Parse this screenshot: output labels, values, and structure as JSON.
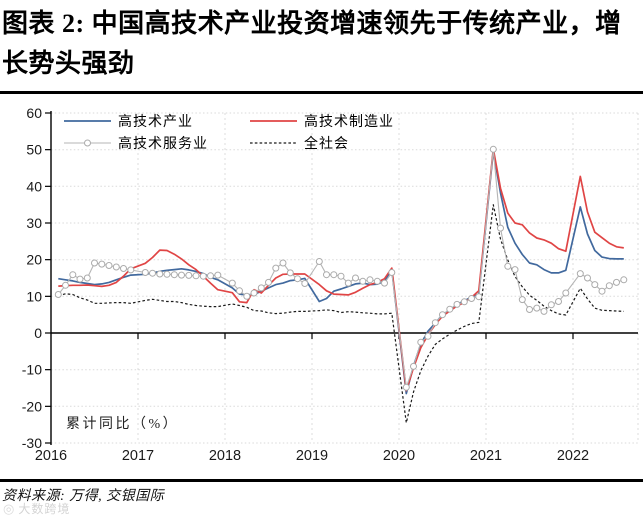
{
  "header": {
    "title": "图表 2: 中国高技术产业投资增速领先于传统产业，增长势头强劲"
  },
  "footer": {
    "source": "资料来源: 万得, 交银国际",
    "watermark": "大数跨境",
    "watermark_icon": "logo-icon"
  },
  "chart_data": {
    "type": "line",
    "unit_label": "累计同比（%）",
    "legend_position": "top-left, 2 columns",
    "grid": "dotted horizontal every 10, dashed vertical at year starts",
    "ylim": [
      -30,
      60
    ],
    "y_ticks": [
      60,
      50,
      40,
      30,
      20,
      10,
      0,
      -10,
      -20,
      -30
    ],
    "x_tick_labels": [
      "2016",
      "2017",
      "2018",
      "2019",
      "2020",
      "2021",
      "2022"
    ],
    "x": [
      "2016-02",
      "2016-03",
      "2016-04",
      "2016-05",
      "2016-06",
      "2016-07",
      "2016-08",
      "2016-09",
      "2016-10",
      "2016-11",
      "2016-12",
      "2017-02",
      "2017-03",
      "2017-04",
      "2017-05",
      "2017-06",
      "2017-07",
      "2017-08",
      "2017-09",
      "2017-10",
      "2017-11",
      "2017-12",
      "2018-02",
      "2018-03",
      "2018-04",
      "2018-05",
      "2018-06",
      "2018-07",
      "2018-08",
      "2018-09",
      "2018-10",
      "2018-11",
      "2018-12",
      "2019-02",
      "2019-03",
      "2019-04",
      "2019-05",
      "2019-06",
      "2019-07",
      "2019-08",
      "2019-09",
      "2019-10",
      "2019-11",
      "2019-12",
      "2020-02",
      "2020-03",
      "2020-04",
      "2020-05",
      "2020-06",
      "2020-07",
      "2020-08",
      "2020-09",
      "2020-10",
      "2020-11",
      "2020-12",
      "2021-02",
      "2021-03",
      "2021-04",
      "2021-05",
      "2021-06",
      "2021-07",
      "2021-08",
      "2021-09",
      "2021-10",
      "2021-11",
      "2021-12",
      "2022-02",
      "2022-03",
      "2022-04",
      "2022-05",
      "2022-06",
      "2022-07",
      "2022-08"
    ],
    "series": [
      {
        "name": "高技术产业",
        "color": "#41699e",
        "style": "solid",
        "marker": "none",
        "width": 1.7,
        "values": [
          14.8,
          14.5,
          14.2,
          13.8,
          13.5,
          13.2,
          13.4,
          13.8,
          14.5,
          15.2,
          15.8,
          16.0,
          16.4,
          16.8,
          17.1,
          17.3,
          17.5,
          17.2,
          16.8,
          16.2,
          15.2,
          14.5,
          12.3,
          10.6,
          10.4,
          10.5,
          11.4,
          12.3,
          13.2,
          13.6,
          14.3,
          14.5,
          14.9,
          8.6,
          9.4,
          11.4,
          12.0,
          12.7,
          13.4,
          13.6,
          13.2,
          13.3,
          14.2,
          17.3,
          -16.5,
          -9.0,
          -3.0,
          0.5,
          2.7,
          5.0,
          6.3,
          7.8,
          8.8,
          9.8,
          10.6,
          49.6,
          38.2,
          28.8,
          24.5,
          21.4,
          19.1,
          18.6,
          17.3,
          16.4,
          16.4,
          17.1,
          34.4,
          27.0,
          22.5,
          20.7,
          20.3,
          20.2,
          20.2
        ]
      },
      {
        "name": "高技术制造业",
        "color": "#e04545",
        "style": "solid",
        "marker": "none",
        "width": 1.7,
        "values": [
          12.8,
          12.9,
          13.0,
          13.0,
          13.1,
          12.9,
          12.7,
          13.0,
          13.8,
          15.5,
          17.5,
          19.0,
          20.6,
          22.6,
          22.5,
          21.5,
          20.2,
          18.6,
          17.3,
          15.5,
          13.6,
          11.8,
          11.0,
          8.5,
          8.3,
          11.8,
          10.9,
          13.0,
          15.0,
          16.0,
          16.1,
          16.1,
          16.1,
          13.2,
          11.5,
          10.6,
          10.5,
          10.4,
          11.1,
          12.2,
          13.2,
          13.8,
          14.8,
          17.7,
          -15.7,
          -9.5,
          -4.0,
          -0.5,
          2.3,
          4.6,
          6.0,
          7.4,
          8.3,
          9.7,
          11.5,
          50.2,
          39.5,
          32.7,
          30.0,
          29.5,
          27.3,
          25.9,
          25.4,
          24.5,
          23.0,
          22.3,
          42.7,
          33.0,
          27.5,
          26.0,
          24.5,
          23.5,
          23.2
        ]
      },
      {
        "name": "高技术服务业",
        "color": "#b5b5b5",
        "style": "solid",
        "marker": "circle",
        "width": 1.1,
        "values": [
          10.5,
          13.0,
          15.9,
          14.7,
          15.0,
          19.1,
          18.8,
          18.4,
          18.0,
          17.6,
          17.2,
          16.5,
          16.3,
          16.1,
          16.0,
          15.9,
          15.8,
          15.7,
          15.6,
          15.5,
          15.6,
          15.8,
          13.6,
          11.5,
          10.0,
          10.9,
          12.3,
          13.8,
          17.7,
          19.1,
          16.4,
          14.8,
          13.5,
          19.5,
          15.9,
          15.9,
          15.5,
          13.6,
          15.0,
          14.1,
          14.5,
          14.1,
          13.6,
          16.5,
          -14.8,
          -9.1,
          -2.5,
          -0.9,
          2.8,
          5.0,
          6.5,
          7.8,
          8.5,
          9.4,
          9.9,
          50.1,
          28.6,
          18.2,
          17.3,
          9.1,
          6.4,
          6.8,
          5.9,
          7.7,
          8.6,
          10.9,
          16.2,
          15.0,
          13.2,
          11.4,
          12.9,
          13.8,
          14.5
        ]
      },
      {
        "name": "全社会",
        "color": "#1a1a1a",
        "style": "dashed",
        "marker": "none",
        "width": 1.2,
        "values": [
          10.2,
          10.7,
          10.5,
          9.6,
          9.0,
          8.1,
          8.1,
          8.2,
          8.3,
          8.3,
          8.1,
          8.9,
          9.2,
          8.9,
          8.6,
          8.6,
          8.3,
          7.8,
          7.5,
          7.3,
          7.2,
          7.2,
          7.9,
          7.5,
          7.0,
          6.1,
          6.0,
          5.5,
          5.3,
          5.4,
          5.7,
          5.9,
          5.9,
          6.1,
          6.3,
          6.1,
          5.6,
          5.8,
          5.7,
          5.5,
          5.4,
          5.2,
          5.2,
          5.4,
          -24.5,
          -16.1,
          -10.3,
          -6.3,
          -3.1,
          -1.6,
          -0.3,
          0.8,
          1.8,
          2.6,
          2.9,
          35.0,
          25.6,
          19.9,
          15.4,
          12.6,
          10.3,
          8.9,
          7.3,
          6.1,
          5.2,
          4.9,
          12.2,
          9.3,
          6.8,
          6.2,
          6.1,
          6.0,
          5.9
        ]
      }
    ]
  }
}
